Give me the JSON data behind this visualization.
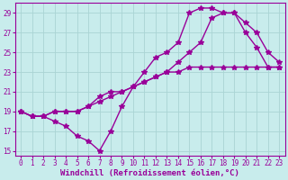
{
  "background_color": "#c8ecec",
  "grid_color": "#aad4d4",
  "line_color": "#990099",
  "marker": "*",
  "marker_size": 4,
  "line_width": 1.0,
  "xlim": [
    -0.5,
    23.5
  ],
  "ylim": [
    14.5,
    30.0
  ],
  "yticks": [
    15,
    17,
    19,
    21,
    23,
    25,
    27,
    29
  ],
  "xticks": [
    0,
    1,
    2,
    3,
    4,
    5,
    6,
    7,
    8,
    9,
    10,
    11,
    12,
    13,
    14,
    15,
    16,
    17,
    18,
    19,
    20,
    21,
    22,
    23
  ],
  "xlabel": "Windchill (Refroidissement éolien,°C)",
  "xlabel_fontsize": 6.5,
  "tick_fontsize": 5.5,
  "series1_x": [
    0,
    1,
    2,
    3,
    4,
    5,
    6,
    7,
    8,
    9,
    10,
    11,
    12,
    13,
    14,
    15,
    16,
    17,
    18,
    19,
    20,
    21,
    22,
    23
  ],
  "series1_y": [
    19,
    18.5,
    18.5,
    18,
    17.5,
    16.5,
    16,
    15,
    17,
    19.5,
    21.5,
    23,
    24.5,
    25,
    26,
    29,
    29.5,
    29.5,
    29,
    29,
    27,
    25.5,
    23.5,
    23.5
  ],
  "series2_x": [
    0,
    1,
    2,
    3,
    4,
    5,
    6,
    7,
    8,
    9,
    10,
    11,
    12,
    13,
    14,
    15,
    16,
    17,
    18,
    19,
    20,
    21,
    22,
    23
  ],
  "series2_y": [
    19,
    18.5,
    18.5,
    19,
    19,
    19,
    19.5,
    20,
    20.5,
    21,
    21.5,
    22,
    22.5,
    23,
    24,
    25,
    26,
    28.5,
    29,
    29,
    28,
    27,
    25,
    24
  ],
  "series3_x": [
    0,
    1,
    2,
    3,
    4,
    5,
    6,
    7,
    8,
    9,
    10,
    11,
    12,
    13,
    14,
    15,
    16,
    17,
    18,
    19,
    20,
    21,
    22,
    23
  ],
  "series3_y": [
    19,
    18.5,
    18.5,
    19,
    19,
    19,
    19.5,
    20.5,
    21,
    21,
    21.5,
    22,
    22.5,
    23,
    23,
    23.5,
    23.5,
    23.5,
    23.5,
    23.5,
    23.5,
    23.5,
    23.5,
    23.5
  ]
}
